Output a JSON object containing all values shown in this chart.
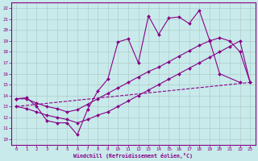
{
  "background_color": "#c8eaea",
  "grid_color": "#b0cccc",
  "line_color": "#880088",
  "xlabel": "Windchill (Refroidissement éolien,°C)",
  "xlim": [
    -0.5,
    23.5
  ],
  "ylim": [
    9.5,
    22.5
  ],
  "xticks": [
    0,
    1,
    2,
    3,
    4,
    5,
    6,
    7,
    8,
    9,
    10,
    11,
    12,
    13,
    14,
    15,
    16,
    17,
    18,
    19,
    20,
    21,
    22,
    23
  ],
  "yticks": [
    10,
    11,
    12,
    13,
    14,
    15,
    16,
    17,
    18,
    19,
    20,
    21,
    22
  ],
  "series1_x": [
    0,
    1,
    2,
    3,
    4,
    5,
    6,
    7,
    8,
    9,
    10,
    11,
    12,
    13,
    14,
    15,
    16,
    17,
    18,
    19,
    20,
    22
  ],
  "series1_y": [
    13.7,
    13.8,
    13.0,
    11.7,
    11.5,
    11.5,
    10.4,
    12.7,
    14.4,
    15.5,
    18.9,
    19.2,
    17.0,
    21.3,
    19.6,
    21.1,
    21.2,
    20.6,
    21.8,
    19.1,
    16.0,
    15.2
  ],
  "series2_x": [
    0,
    1,
    2,
    3,
    4,
    5,
    6,
    7,
    8,
    9,
    10,
    11,
    12,
    13,
    14,
    15,
    16,
    17,
    18,
    19,
    20,
    21,
    22,
    23
  ],
  "series2_y": [
    13.7,
    13.7,
    13.3,
    13.0,
    12.8,
    12.5,
    12.7,
    13.2,
    13.7,
    14.2,
    14.7,
    15.2,
    15.7,
    16.2,
    16.6,
    17.1,
    17.6,
    18.1,
    18.6,
    19.0,
    19.3,
    19.0,
    18.0,
    15.2
  ],
  "series3_x": [
    0,
    23
  ],
  "series3_y": [
    13.0,
    15.2
  ],
  "series4_x": [
    0,
    1,
    2,
    3,
    4,
    5,
    6,
    7,
    8,
    9,
    10,
    11,
    12,
    13,
    14,
    15,
    16,
    17,
    18,
    19,
    20,
    21,
    22,
    23
  ],
  "series4_y": [
    13.0,
    12.8,
    12.5,
    12.2,
    12.0,
    11.8,
    11.5,
    11.8,
    12.2,
    12.5,
    13.0,
    13.5,
    14.0,
    14.5,
    15.0,
    15.5,
    16.0,
    16.5,
    17.0,
    17.5,
    18.0,
    18.5,
    19.0,
    15.2
  ]
}
